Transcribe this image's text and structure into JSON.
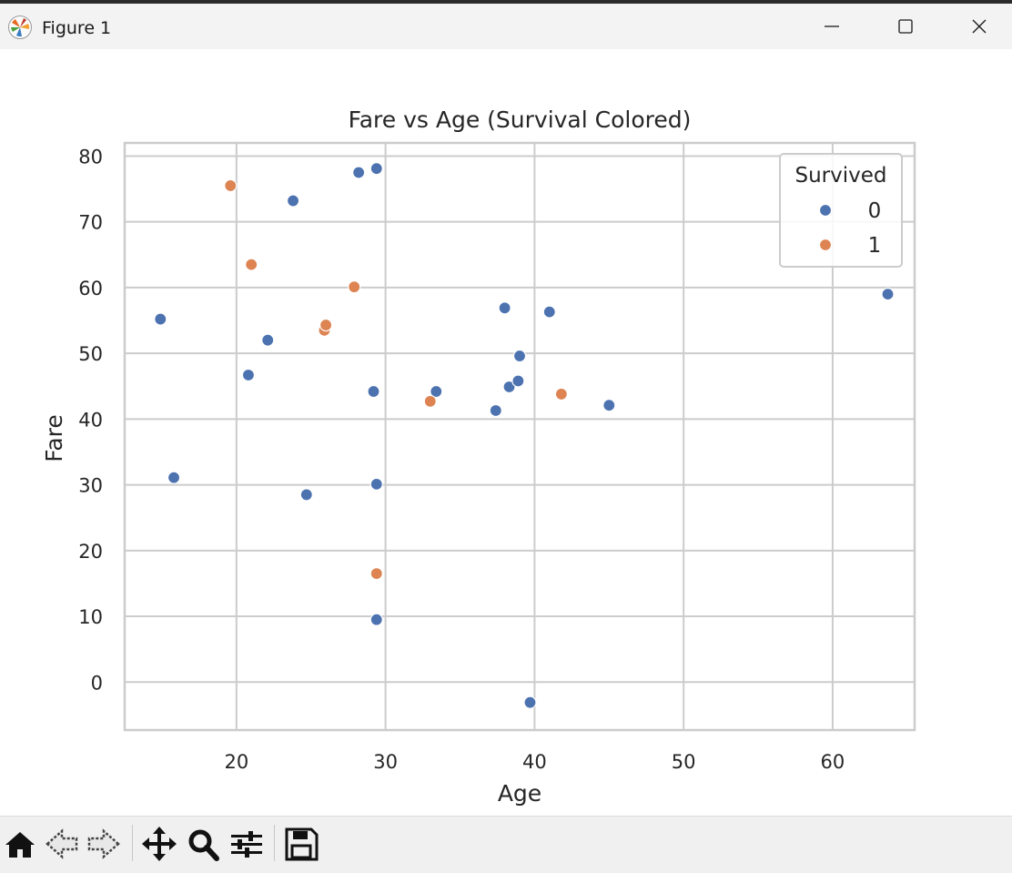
{
  "window": {
    "title": "Figure 1",
    "controls": [
      "minimize",
      "maximize",
      "close"
    ]
  },
  "chart_data": {
    "type": "scatter",
    "title": "Fare vs Age (Survival Colored)",
    "xlabel": "Age",
    "ylabel": "Fare",
    "xlim": [
      12.5,
      65.5
    ],
    "ylim": [
      -7.3,
      82.0
    ],
    "xticks": [
      20,
      30,
      40,
      50,
      60
    ],
    "yticks": [
      0,
      10,
      20,
      30,
      40,
      50,
      60,
      70,
      80
    ],
    "grid": true,
    "legend": {
      "title": "Survived",
      "position": "top-right"
    },
    "series": [
      {
        "name": "0",
        "color": "#4c72b0",
        "points": [
          [
            14.9,
            55.2
          ],
          [
            15.8,
            31.1
          ],
          [
            20.8,
            46.7
          ],
          [
            22.1,
            52.0
          ],
          [
            23.8,
            73.2
          ],
          [
            24.7,
            28.5
          ],
          [
            28.2,
            77.5
          ],
          [
            29.4,
            78.1
          ],
          [
            29.2,
            44.2
          ],
          [
            29.4,
            30.1
          ],
          [
            29.4,
            9.5
          ],
          [
            33.4,
            44.2
          ],
          [
            37.4,
            41.3
          ],
          [
            38.0,
            56.9
          ],
          [
            38.3,
            44.9
          ],
          [
            38.9,
            45.8
          ],
          [
            39.0,
            49.6
          ],
          [
            41.0,
            56.3
          ],
          [
            45.0,
            42.1
          ],
          [
            39.7,
            -3.1
          ],
          [
            63.7,
            59.0
          ]
        ]
      },
      {
        "name": "1",
        "color": "#dd8452",
        "points": [
          [
            19.6,
            75.5
          ],
          [
            21.0,
            63.5
          ],
          [
            25.9,
            53.5
          ],
          [
            26.0,
            54.3
          ],
          [
            27.9,
            60.1
          ],
          [
            33.0,
            42.7
          ],
          [
            41.8,
            43.8
          ],
          [
            29.4,
            16.5
          ]
        ]
      }
    ]
  },
  "toolbar": {
    "buttons": [
      "home-icon",
      "back-icon",
      "forward-icon",
      "pan-icon",
      "zoom-icon",
      "configure-subplots-icon",
      "save-icon"
    ]
  }
}
